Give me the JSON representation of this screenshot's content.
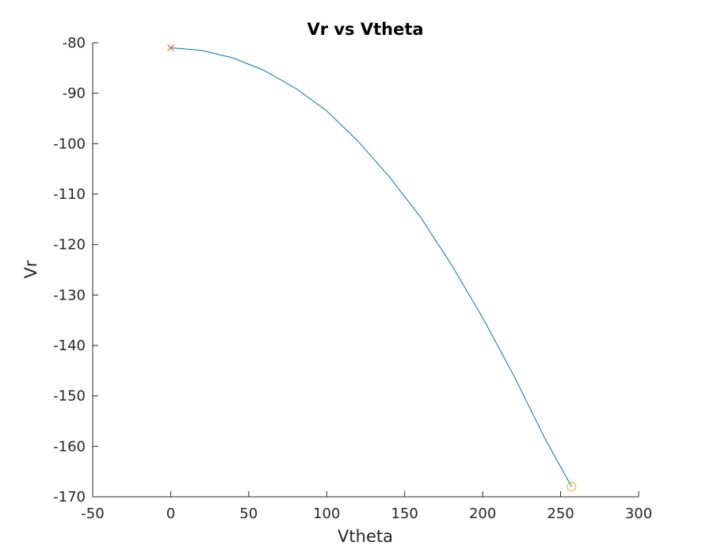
{
  "chart_data": {
    "type": "line",
    "title": "Vr vs Vtheta",
    "xlabel": "Vtheta",
    "ylabel": "Vr",
    "xlim": [
      -50,
      300
    ],
    "ylim": [
      -170,
      -80
    ],
    "xticks": [
      -50,
      0,
      50,
      100,
      150,
      200,
      250,
      300
    ],
    "yticks": [
      -80,
      -90,
      -100,
      -110,
      -120,
      -130,
      -140,
      -150,
      -160,
      -170
    ],
    "grid": false,
    "series": [
      {
        "color": "#0072BD",
        "x": [
          0,
          20,
          40,
          60,
          80,
          100,
          120,
          140,
          160,
          180,
          200,
          220,
          240,
          257
        ],
        "y": [
          -81,
          -81.5,
          -83,
          -85.5,
          -89,
          -93.5,
          -99.5,
          -106.5,
          -114.5,
          -124,
          -134.5,
          -146,
          -158.5,
          -168
        ]
      }
    ],
    "markers": [
      {
        "shape": "x",
        "color": "#D95319",
        "x": 0,
        "y": -81
      },
      {
        "shape": "o",
        "color": "#EDB120",
        "x": 257,
        "y": -168
      }
    ]
  }
}
